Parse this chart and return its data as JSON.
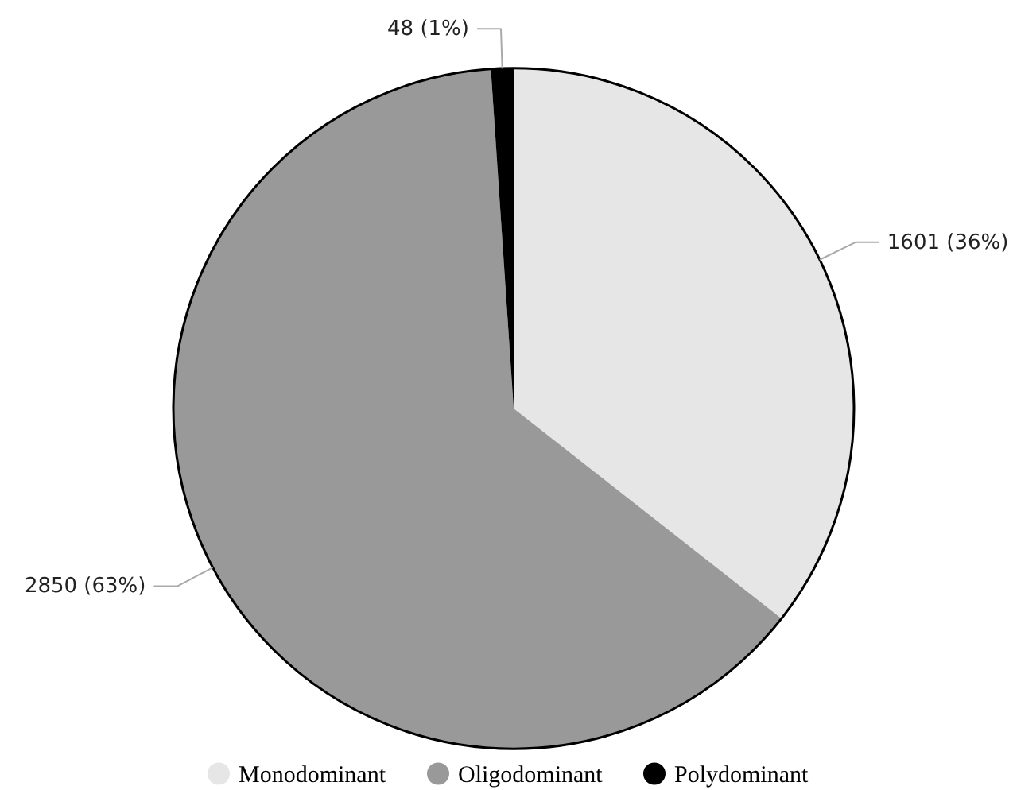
{
  "chart_data": {
    "type": "pie",
    "categories": [
      "Monodominant",
      "Oligodominant",
      "Polydominant"
    ],
    "values": [
      1601,
      2850,
      48
    ],
    "colors": [
      "#e6e6e6",
      "#999999",
      "#000000"
    ],
    "value_labels": [
      "1601 (36%)",
      "2850 (63%)",
      "48 (1%)"
    ],
    "legend": "bottom"
  }
}
